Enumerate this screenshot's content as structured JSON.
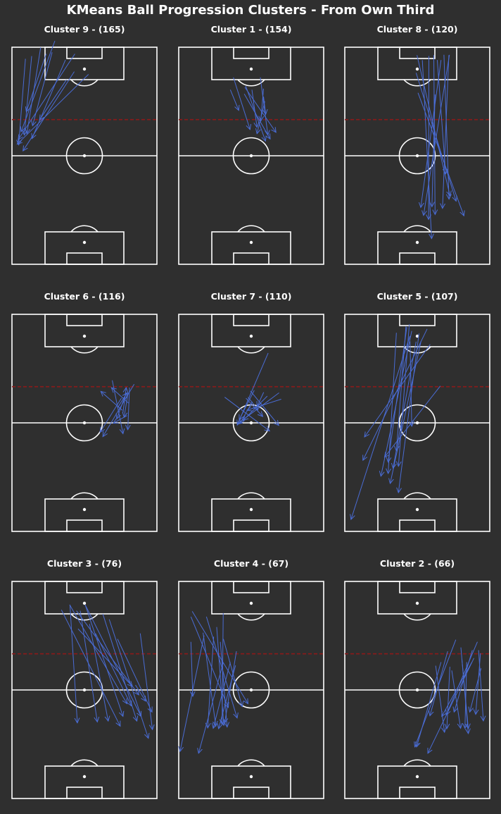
{
  "title": "KMeans Ball Progression Clusters - From Own Third",
  "colors": {
    "background": "#2f2f2f",
    "pitch_lines": "#ffffff",
    "arrow": "#4a6cd4",
    "third_line": "#8b1a1a"
  },
  "chart_data": [
    {
      "type": "scatter",
      "title": "Cluster 9 - (165)",
      "cluster": 9,
      "count": 165,
      "arrows": [
        [
          52.8,
          105.0,
          3.6,
          66.4
        ],
        [
          43.4,
          116.3,
          4.3,
          68.9
        ],
        [
          29.6,
          123.5,
          6.3,
          73.3
        ],
        [
          36.9,
          113.0,
          13.8,
          69.5
        ],
        [
          43.0,
          106.5,
          7.6,
          62.7
        ],
        [
          37.6,
          102.0,
          19.0,
          79.8
        ],
        [
          23.6,
          116.3,
          9.9,
          84.3
        ],
        [
          19.8,
          119.9,
          10.3,
          72.2
        ],
        [
          13.6,
          115.1,
          8.5,
          71.4
        ],
        [
          9.3,
          113.6,
          4.6,
          66.0
        ],
        [
          27.7,
          117.2,
          14.2,
          76.6
        ]
      ]
    },
    {
      "type": "scatter",
      "title": "Cluster 1 - (154)",
      "cluster": 1,
      "count": 154,
      "arrows": [
        [
          45.2,
          94.2,
          63.1,
          69.3
        ],
        [
          37.7,
          103.3,
          49.2,
          74.5
        ],
        [
          45.6,
          97.9,
          67.1,
          72.9
        ],
        [
          56.3,
          103.3,
          61.5,
          71.4
        ],
        [
          50.5,
          96.5,
          54.0,
          75.7
        ],
        [
          59.4,
          90.1,
          54.0,
          72.2
        ],
        [
          46.2,
          98.6,
          59.9,
          68.1
        ],
        [
          58.5,
          97.1,
          56.6,
          79.2
        ],
        [
          35.6,
          96.5,
          41.4,
          85.1
        ],
        [
          58.5,
          92.7,
          60.0,
          82.9
        ]
      ]
    },
    {
      "type": "scatter",
      "title": "Cluster 8 - (120)",
      "cluster": 8,
      "count": 120,
      "arrows": [
        [
          50.5,
          94.8,
          82.2,
          26.8
        ],
        [
          49.2,
          105.8,
          76.8,
          34.9
        ],
        [
          58.0,
          115.2,
          57.8,
          24.8
        ],
        [
          49.8,
          115.6,
          72.6,
          37.8
        ],
        [
          61.4,
          115.6,
          62.3,
          27.5
        ],
        [
          63.8,
          112.9,
          69.6,
          50.0
        ],
        [
          68.4,
          115.8,
          71.9,
          36.0
        ],
        [
          71.8,
          115.6,
          67.4,
          30.9
        ],
        [
          66.4,
          112.9,
          52.4,
          31.4
        ],
        [
          72.2,
          115.8,
          54.3,
          27.0
        ],
        [
          62.3,
          93.9,
          60.1,
          31.8
        ],
        [
          53.5,
          112.9,
          59.9,
          14.2
        ]
      ]
    },
    {
      "type": "scatter",
      "title": "Cluster 6 - (116)",
      "cluster": 6,
      "count": 116,
      "arrows": [
        [
          80.4,
          70.9,
          68.6,
          79.5
        ],
        [
          84.3,
          81.4,
          62.7,
          52.4
        ],
        [
          76.6,
          65.7,
          78.8,
          79.5
        ],
        [
          75.5,
          73.7,
          60.8,
          54.8
        ],
        [
          72.9,
          68.4,
          79.4,
          76.6
        ],
        [
          80.1,
          76.9,
          77.4,
          63.1
        ],
        [
          79.4,
          64.0,
          69.8,
          59.8
        ],
        [
          76.2,
          66.9,
          61.3,
          77.4
        ],
        [
          81.1,
          79.5,
          79.9,
          56.2
        ],
        [
          69.2,
          83.5,
          76.6,
          54.0
        ],
        [
          78.8,
          76.6,
          72.3,
          62.2
        ]
      ]
    },
    {
      "type": "scatter",
      "title": "Cluster 7 - (110)",
      "cluster": 7,
      "count": 110,
      "arrows": [
        [
          61.7,
          98.6,
          40.4,
          58.8
        ],
        [
          50.8,
          71.7,
          42.2,
          59.6
        ],
        [
          58.6,
          76.9,
          54.0,
          69.0
        ],
        [
          46.4,
          73.6,
          58.0,
          63.5
        ],
        [
          61.1,
          74.8,
          44.5,
          61.4
        ],
        [
          52.1,
          78.0,
          41.7,
          61.7
        ],
        [
          47.8,
          74.2,
          54.7,
          67.2
        ],
        [
          69.2,
          76.6,
          40.4,
          59.4
        ],
        [
          70.7,
          73.1,
          47.1,
          67.0
        ],
        [
          31.7,
          74.2,
          62.7,
          55.5
        ],
        [
          49.5,
          77.6,
          69.0,
          58.6
        ]
      ]
    },
    {
      "type": "scatter",
      "title": "Cluster 5 - (107)",
      "cluster": 5,
      "count": 107,
      "arrows": [
        [
          51.2,
          109.4,
          37.0,
          21.4
        ],
        [
          42.2,
          113.3,
          35.6,
          44.5
        ],
        [
          35.6,
          109.8,
          29.9,
          32.0
        ],
        [
          46.2,
          110.8,
          24.9,
          30.5
        ],
        [
          52.6,
          105.2,
          31.3,
          26.5
        ],
        [
          49.2,
          104.9,
          33.3,
          34.9
        ],
        [
          65.9,
          80.4,
          27.4,
          41.0
        ],
        [
          44.5,
          114.5,
          37.0,
          36.0
        ],
        [
          42.8,
          112.9,
          29.9,
          38.3
        ],
        [
          56.8,
          111.9,
          12.5,
          39.3
        ],
        [
          58.9,
          103.4,
          13.6,
          52.2
        ],
        [
          44.9,
          108.0,
          4.3,
          6.6
        ],
        [
          45.0,
          105.0,
          46.2,
          58.1
        ]
      ]
    },
    {
      "type": "scatter",
      "title": "Cluster 3 - (76)",
      "cluster": 3,
      "count": 76,
      "arrows": [
        [
          40.0,
          107.1,
          45.1,
          41.8
        ],
        [
          50.5,
          107.1,
          89.1,
          45.4
        ],
        [
          44.5,
          103.8,
          87.5,
          57.3
        ],
        [
          34.1,
          104.3,
          74.7,
          40.0
        ],
        [
          50.5,
          107.1,
          76.6,
          45.4
        ],
        [
          57.6,
          91.3,
          82.4,
          51.2
        ],
        [
          45.6,
          93.8,
          83.1,
          62.0
        ],
        [
          62.7,
          102.0,
          86.2,
          42.8
        ],
        [
          39.8,
          107.1,
          79.4,
          52.4
        ],
        [
          47.1,
          103.8,
          58.9,
          42.3
        ],
        [
          72.8,
          88.2,
          96.6,
          47.8
        ],
        [
          67.1,
          99.0,
          94.1,
          33.3
        ],
        [
          88.5,
          91.3,
          96.9,
          38.1
        ],
        [
          85.2,
          62.7,
          92.3,
          53.8
        ],
        [
          53.5,
          96.5,
          66.4,
          42.8
        ]
      ]
    },
    {
      "type": "scatter",
      "title": "Cluster 4 - (67)",
      "cluster": 4,
      "count": 67,
      "arrows": [
        [
          8.4,
          86.6,
          9.7,
          56.5
        ],
        [
          17.5,
          90.1,
          0.9,
          26.0
        ],
        [
          16.8,
          91.7,
          25.6,
          40.0
        ],
        [
          30.8,
          88.2,
          43.8,
          50.8
        ],
        [
          8.4,
          100.5,
          34.2,
          50.3
        ],
        [
          28.7,
          86.6,
          33.4,
          39.5
        ],
        [
          39.8,
          81.4,
          31.7,
          41.8
        ],
        [
          30.6,
          74.8,
          13.7,
          25.0
        ],
        [
          24.1,
          89.5,
          20.0,
          39.0
        ],
        [
          26.2,
          94.8,
          31.1,
          40.4
        ],
        [
          35.6,
          75.4,
          23.8,
          38.8
        ],
        [
          39.2,
          73.6,
          27.5,
          38.6
        ],
        [
          19.1,
          100.5,
          40.3,
          44.5
        ],
        [
          9.3,
          103.5,
          47.8,
          52.4
        ],
        [
          30.7,
          102.5,
          29.9,
          41.0
        ]
      ]
    },
    {
      "type": "scatter",
      "title": "Cluster 2 - (66)",
      "cluster": 2,
      "count": 66,
      "arrows": [
        [
          73.8,
          70.8,
          79.9,
          38.8
        ],
        [
          71.0,
          81.4,
          58.7,
          45.7
        ],
        [
          80.8,
          77.1,
          85.2,
          38.6
        ],
        [
          76.6,
          87.8,
          48.3,
          28.5
        ],
        [
          89.1,
          77.6,
          57.3,
          25.0
        ],
        [
          80.1,
          83.5,
          85.2,
          35.9
        ],
        [
          87.7,
          75.4,
          66.9,
          45.4
        ],
        [
          94.0,
          72.0,
          86.2,
          47.8
        ],
        [
          84.1,
          75.4,
          82.9,
          38.8
        ],
        [
          93.6,
          80.3,
          90.3,
          46.5
        ],
        [
          92.3,
          82.0,
          95.6,
          42.9
        ],
        [
          88.0,
          82.0,
          75.4,
          47.8
        ],
        [
          91.5,
          86.6,
          70.0,
          46.2
        ],
        [
          66.4,
          75.4,
          49.5,
          28.5
        ],
        [
          62.7,
          73.4,
          68.8,
          36.6
        ],
        [
          72.5,
          72.8,
          70.4,
          38.6
        ]
      ]
    }
  ]
}
